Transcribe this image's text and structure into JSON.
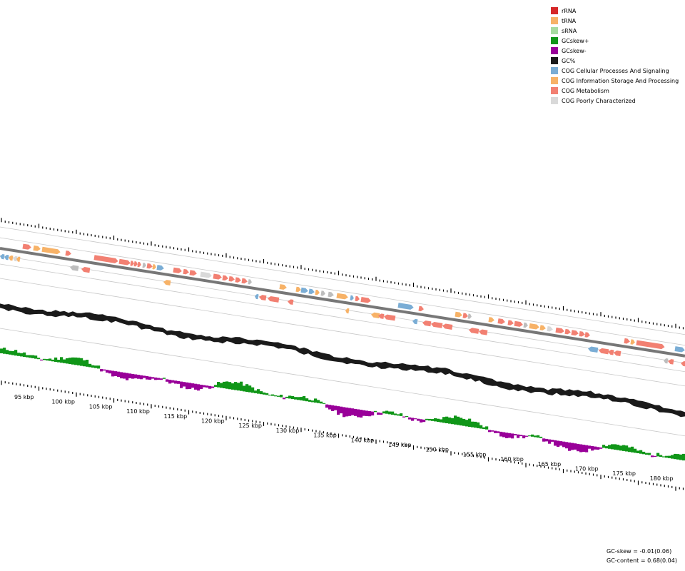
{
  "legend": {
    "items": [
      {
        "label": "rRNA",
        "color": "#d62728"
      },
      {
        "label": "tRNA",
        "color": "#f7b267"
      },
      {
        "label": "sRNA",
        "color": "#a6dba0"
      },
      {
        "label": "GCskew+",
        "color": "#109618"
      },
      {
        "label": "GCskew-",
        "color": "#990099"
      },
      {
        "label": "GC%",
        "color": "#1a1a1a"
      },
      {
        "label": "COG Cellular Processes And Signaling",
        "color": "#7aadd5"
      },
      {
        "label": "COG Information Storage And Processing",
        "color": "#f7b267"
      },
      {
        "label": "COG Metabolism",
        "color": "#f28072"
      },
      {
        "label": "COG Poorly Characterized",
        "color": "#d9d9d9"
      }
    ]
  },
  "axis": {
    "unit": "kbp",
    "labels": [
      "95 kbp",
      "100 kbp",
      "105 kbp",
      "110 kbp",
      "115 kbp",
      "120 kbp",
      "125 kbp",
      "130 kbp",
      "135 kbp",
      "140 kbp",
      "145 kbp",
      "150 kbp",
      "155 kbp",
      "160 kbp",
      "165 kbp",
      "170 kbp",
      "175 kbp",
      "180 kbp"
    ]
  },
  "stats": {
    "gc_skew": "GC-skew = -0.01(0.06)",
    "gc_content": "GC-content = 0.68(0.04)"
  }
}
